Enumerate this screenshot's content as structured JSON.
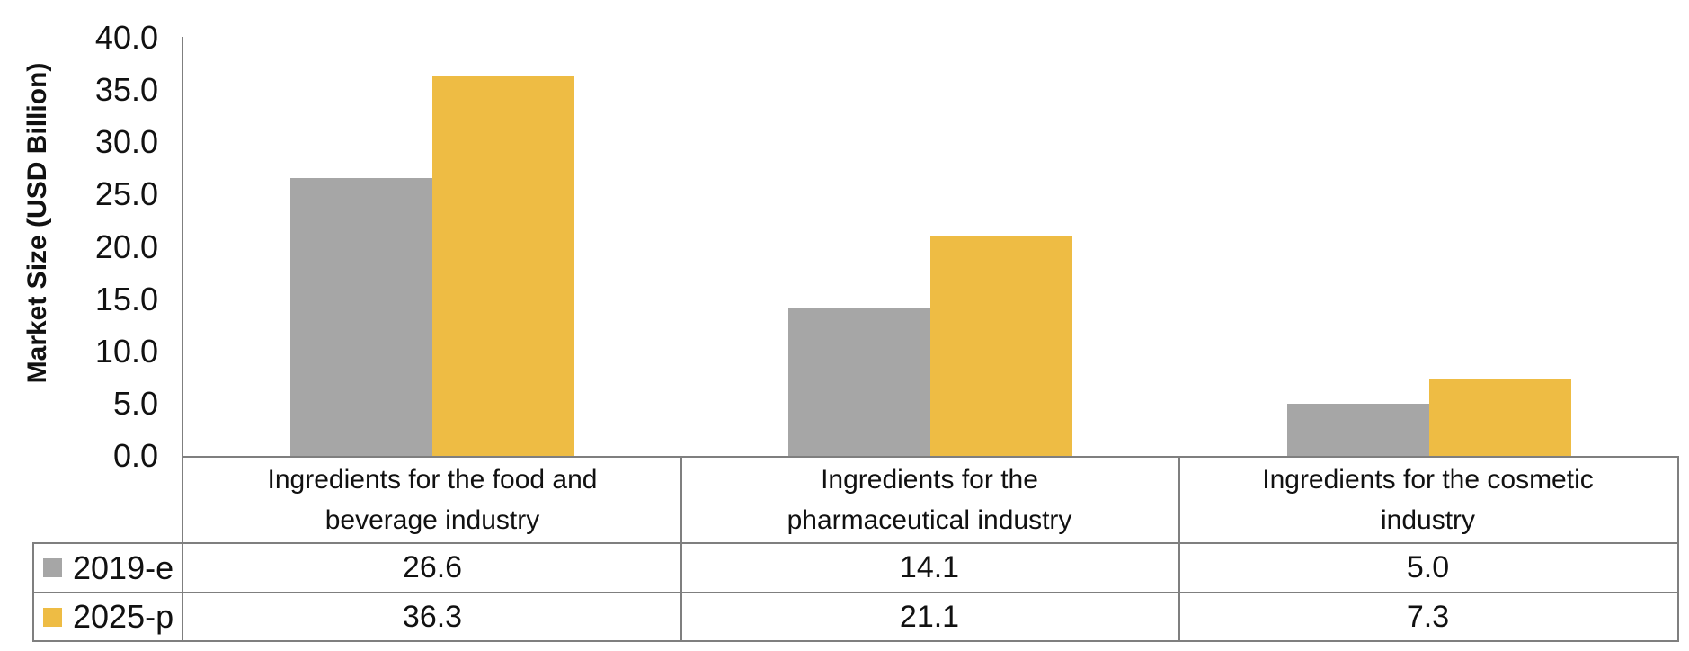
{
  "chart_data": {
    "type": "bar",
    "title": "",
    "ylabel": "Market Size (USD Billion)",
    "xlabel": "",
    "categories": [
      "Ingredients for the food and beverage industry",
      "Ingredients for the pharmaceutical industry",
      "Ingredients for the cosmetic industry"
    ],
    "series": [
      {
        "name": "2019-e",
        "color": "#A6A6A6",
        "values": [
          26.6,
          14.1,
          5.0
        ],
        "value_labels": [
          "26.6",
          "14.1",
          "5.0"
        ]
      },
      {
        "name": "2025-p",
        "color": "#EEBC44",
        "values": [
          36.3,
          21.1,
          7.3
        ],
        "value_labels": [
          "36.3",
          "21.1",
          "7.3"
        ]
      }
    ],
    "ylim": [
      0,
      40
    ],
    "ytick_step": 5,
    "ytick_labels": [
      "0.0",
      "5.0",
      "10.0",
      "15.0",
      "20.0",
      "25.0",
      "30.0",
      "35.0",
      "40.0"
    ],
    "grid": false,
    "legend_position": "left-of-data-table",
    "colors": {
      "axis_and_border": "#7F7F7F",
      "text": "#111111",
      "background": "#FFFFFF"
    }
  }
}
